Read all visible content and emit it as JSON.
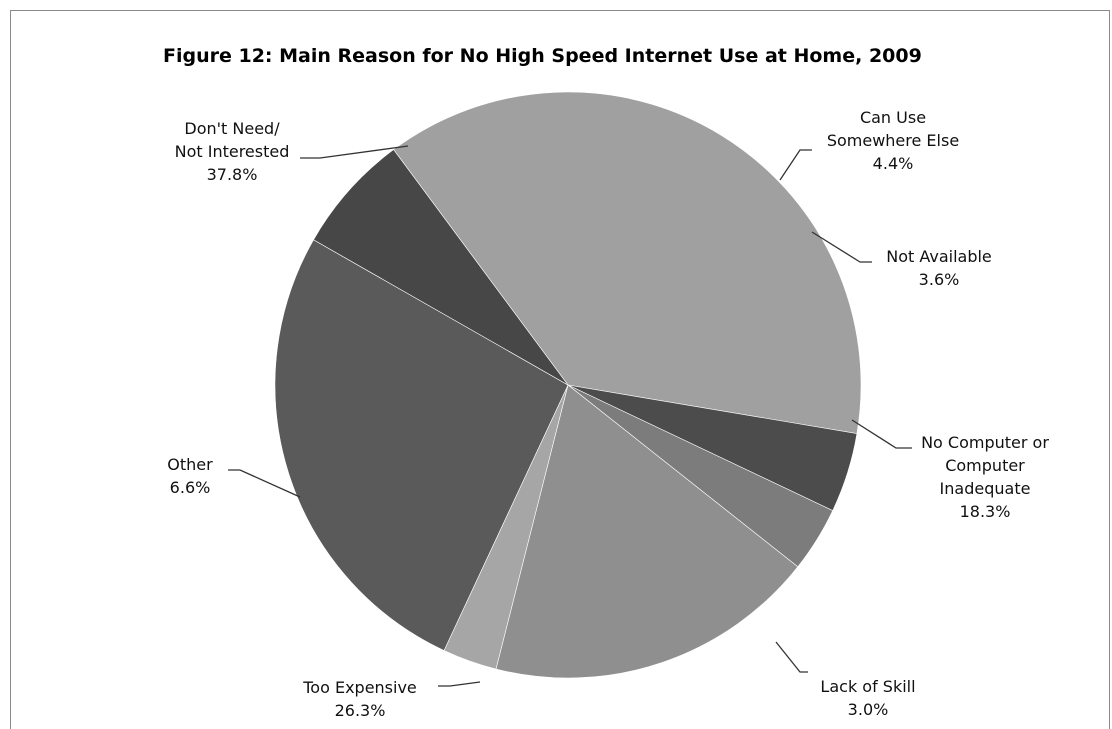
{
  "chart_data": {
    "type": "pie",
    "title": "Figure 12:  Main Reason for No High Speed Internet Use at Home, 2009",
    "slices": [
      {
        "label_lines": [
          "Don't Need/",
          "Not Interested"
        ],
        "value": 37.8,
        "value_label": "37.8%",
        "color": "#a0a0a0"
      },
      {
        "label_lines": [
          "Can Use",
          "Somewhere Else"
        ],
        "value": 4.4,
        "value_label": "4.4%",
        "color": "#4c4c4c"
      },
      {
        "label_lines": [
          "Not Available"
        ],
        "value": 3.6,
        "value_label": "3.6%",
        "color": "#7c7c7c"
      },
      {
        "label_lines": [
          "No Computer or",
          "Computer",
          "Inadequate"
        ],
        "value": 18.3,
        "value_label": "18.3%",
        "color": "#8f8f8f"
      },
      {
        "label_lines": [
          "Lack of Skill"
        ],
        "value": 3.0,
        "value_label": "3.0%",
        "color": "#a6a6a6"
      },
      {
        "label_lines": [
          "Too Expensive"
        ],
        "value": 26.3,
        "value_label": "26.3%",
        "color": "#5a5a5a"
      },
      {
        "label_lines": [
          "Other"
        ],
        "value": 6.6,
        "value_label": "6.6%",
        "color": "#474747"
      }
    ]
  }
}
